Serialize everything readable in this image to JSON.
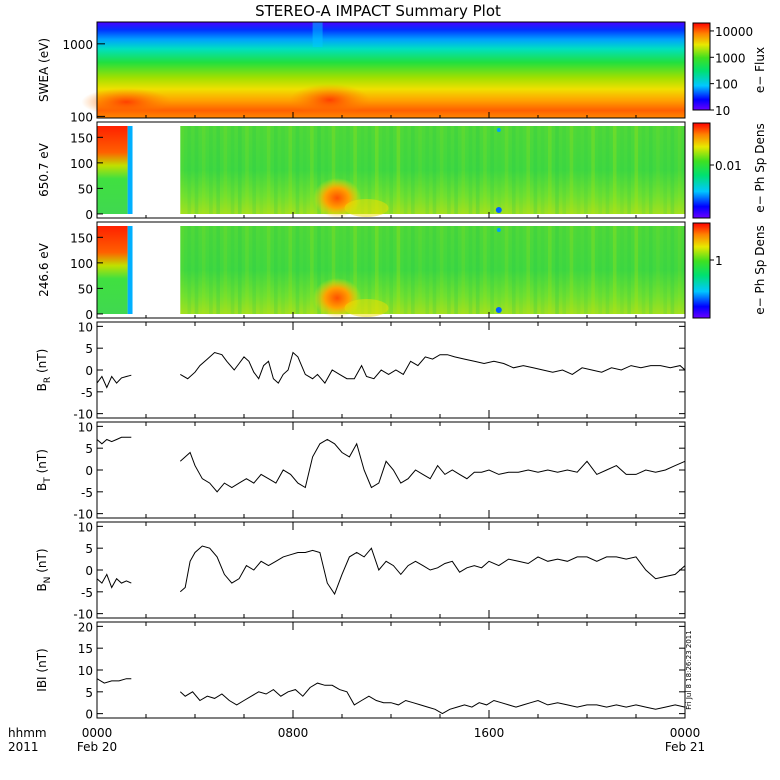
{
  "title": "STEREO-A IMPACT Summary Plot",
  "footer_left": {
    "line1": "hhmm",
    "line2": "2011"
  },
  "stamp": "Fri Jul 8 18:26:23 2011",
  "x_axis": {
    "ticks": [
      {
        "hour": 0,
        "label": "0000",
        "date": "Feb 20"
      },
      {
        "hour": 8,
        "label": "0800",
        "date": ""
      },
      {
        "hour": 16,
        "label": "1600",
        "date": ""
      },
      {
        "hour": 24,
        "label": "0000",
        "date": "Feb 21"
      }
    ],
    "range_hours": [
      0,
      24
    ]
  },
  "chart_data": [
    {
      "type": "heatmap",
      "name": "swea",
      "ylabel": "SWEA (eV)",
      "ylog": true,
      "ylim": [
        95,
        2000
      ],
      "yticks": [
        "1000",
        "100"
      ],
      "colorbar": {
        "label": "e− Flux",
        "log": true,
        "range": [
          10,
          20000
        ],
        "ticks": [
          "10000",
          "1000",
          "100",
          "10"
        ]
      }
    },
    {
      "type": "heatmap",
      "name": "pad650",
      "ylabel": "650.7 eV",
      "ylim": [
        -8,
        180
      ],
      "yticks": [
        "0",
        "50",
        "100",
        "150"
      ],
      "data_gap_hours": [
        1.45,
        3.4
      ],
      "colorbar": {
        "label": "e− Ph Sp Dens",
        "ticks": [
          "0.01"
        ]
      }
    },
    {
      "type": "heatmap",
      "name": "pad246",
      "ylabel": "246.6 eV",
      "ylim": [
        -8,
        180
      ],
      "yticks": [
        "0",
        "50",
        "100",
        "150"
      ],
      "data_gap_hours": [
        1.45,
        3.4
      ],
      "colorbar": {
        "label": "e− Ph Sp Dens",
        "ticks": [
          "1"
        ]
      }
    },
    {
      "type": "line",
      "name": "BR",
      "ylabel": "B",
      "ysub": "R",
      "yunit": "(nT)",
      "ylim": [
        -11,
        11
      ],
      "yticks": [
        "10",
        "5",
        "0",
        "-5",
        "-10"
      ],
      "x": [
        0,
        0.2,
        0.4,
        0.6,
        0.8,
        1.0,
        1.2,
        1.4,
        3.4,
        3.7,
        4.0,
        4.2,
        4.5,
        4.8,
        5.1,
        5.3,
        5.6,
        5.8,
        6.0,
        6.2,
        6.4,
        6.6,
        6.8,
        7.0,
        7.2,
        7.4,
        7.6,
        7.8,
        8.0,
        8.2,
        8.5,
        8.8,
        9.0,
        9.3,
        9.6,
        9.9,
        10.2,
        10.5,
        10.8,
        11.0,
        11.3,
        11.6,
        11.9,
        12.2,
        12.5,
        12.8,
        13.1,
        13.4,
        13.7,
        14.0,
        14.3,
        14.6,
        15.0,
        15.4,
        15.8,
        16.2,
        16.6,
        17.0,
        17.4,
        17.8,
        18.2,
        18.6,
        19.0,
        19.4,
        19.8,
        20.2,
        20.6,
        21.0,
        21.4,
        21.8,
        22.2,
        22.6,
        23.0,
        23.4,
        23.8,
        24.0
      ],
      "y": [
        -3,
        -1.5,
        -4,
        -1.5,
        -3,
        -1.8,
        -1.5,
        -1.2,
        -1,
        -2,
        -0.5,
        1,
        2.5,
        4,
        3.5,
        2,
        0,
        1.5,
        3,
        2,
        -0.5,
        -2,
        1,
        2,
        -2,
        -3,
        -1,
        0,
        4,
        3,
        -1,
        -2,
        -1,
        -3,
        0,
        -1,
        -2,
        -2,
        1,
        -1.5,
        -2,
        0,
        -1,
        0,
        -1,
        2,
        1,
        3,
        2.5,
        3.5,
        3.5,
        3,
        2.5,
        2,
        1.5,
        2,
        1.5,
        0.5,
        1,
        0.5,
        0,
        -0.5,
        0,
        -1,
        0.5,
        0,
        -0.5,
        0.5,
        0,
        1,
        0.5,
        1,
        1,
        0.5,
        1,
        0
      ]
    },
    {
      "type": "line",
      "name": "BT",
      "ylabel": "B",
      "ysub": "T",
      "yunit": "(nT)",
      "ylim": [
        -11,
        11
      ],
      "yticks": [
        "10",
        "5",
        "0",
        "-5",
        "-10"
      ],
      "x": [
        0,
        0.2,
        0.4,
        0.6,
        0.8,
        1.0,
        1.2,
        1.4,
        3.4,
        3.6,
        3.8,
        4.0,
        4.3,
        4.6,
        4.9,
        5.2,
        5.5,
        5.8,
        6.1,
        6.4,
        6.7,
        7.0,
        7.3,
        7.6,
        7.9,
        8.2,
        8.5,
        8.8,
        9.1,
        9.4,
        9.7,
        10.0,
        10.3,
        10.6,
        10.9,
        11.2,
        11.5,
        11.8,
        12.1,
        12.4,
        12.7,
        13.0,
        13.3,
        13.6,
        13.9,
        14.2,
        14.5,
        14.8,
        15.1,
        15.4,
        15.7,
        16.0,
        16.4,
        16.8,
        17.2,
        17.6,
        18.0,
        18.4,
        18.8,
        19.2,
        19.6,
        20.0,
        20.4,
        20.8,
        21.2,
        21.6,
        22.0,
        22.4,
        22.8,
        23.2,
        23.6,
        24.0
      ],
      "y": [
        7,
        6,
        7,
        6.5,
        7,
        7.5,
        7.5,
        7.5,
        2,
        3,
        4,
        1,
        -2,
        -3,
        -5,
        -3,
        -4,
        -3,
        -2,
        -3,
        -1,
        -2,
        -3,
        0,
        -1,
        -3,
        -4,
        3,
        6,
        7,
        6,
        4,
        3,
        6,
        0,
        -4,
        -3,
        2,
        0,
        -3,
        -2,
        0,
        -1,
        -2,
        1,
        -1,
        0,
        -1,
        -2,
        -0.5,
        -0.5,
        0,
        -1,
        -0.5,
        -0.5,
        0,
        -0.5,
        0,
        -0.5,
        0,
        -0.5,
        2,
        -1,
        0,
        1,
        -1,
        -1,
        0,
        -0.5,
        0,
        1,
        2
      ]
    },
    {
      "type": "line",
      "name": "BN",
      "ylabel": "B",
      "ysub": "N",
      "yunit": "(nT)",
      "ylim": [
        -11,
        11
      ],
      "yticks": [
        "10",
        "5",
        "0",
        "-5",
        "-10"
      ],
      "x": [
        0,
        0.2,
        0.4,
        0.6,
        0.8,
        1.0,
        1.2,
        1.4,
        3.4,
        3.6,
        3.8,
        4.0,
        4.3,
        4.6,
        4.9,
        5.2,
        5.5,
        5.8,
        6.1,
        6.4,
        6.7,
        7.0,
        7.3,
        7.6,
        7.9,
        8.2,
        8.5,
        8.8,
        9.1,
        9.4,
        9.7,
        10.0,
        10.3,
        10.6,
        10.9,
        11.2,
        11.5,
        11.8,
        12.1,
        12.4,
        12.7,
        13.0,
        13.3,
        13.6,
        13.9,
        14.2,
        14.5,
        14.8,
        15.1,
        15.4,
        15.7,
        16.0,
        16.4,
        16.8,
        17.2,
        17.6,
        18.0,
        18.4,
        18.8,
        19.2,
        19.6,
        20.0,
        20.4,
        20.8,
        21.2,
        21.6,
        22.0,
        22.4,
        22.8,
        23.2,
        23.6,
        24.0
      ],
      "y": [
        -2,
        -3,
        -1,
        -4,
        -2,
        -3,
        -2.5,
        -3,
        -5,
        -4,
        2,
        4,
        5.5,
        5,
        3,
        -1,
        -3,
        -2,
        1,
        0,
        2,
        1,
        2,
        3,
        3.5,
        4,
        4,
        4.5,
        4,
        -3,
        -5.5,
        -1,
        3,
        4,
        3,
        5,
        0,
        2,
        1,
        -1,
        1,
        2,
        1,
        0,
        0.5,
        1.5,
        2,
        -0.5,
        0.5,
        1,
        0.5,
        2,
        1,
        2.5,
        2,
        1.5,
        3,
        2,
        2.5,
        2,
        3,
        3,
        2,
        3,
        3,
        2.5,
        3,
        0,
        -2,
        -1.5,
        -1,
        1
      ]
    },
    {
      "type": "line",
      "name": "Bmag",
      "ylabel": "IBI (nT)",
      "ylim": [
        -1,
        21
      ],
      "yticks": [
        "20",
        "15",
        "10",
        "5",
        "0"
      ],
      "x": [
        0,
        0.3,
        0.6,
        0.9,
        1.2,
        1.4,
        3.4,
        3.6,
        3.9,
        4.2,
        4.5,
        4.8,
        5.1,
        5.4,
        5.7,
        6.0,
        6.3,
        6.6,
        6.9,
        7.2,
        7.5,
        7.8,
        8.1,
        8.4,
        8.7,
        9.0,
        9.3,
        9.6,
        9.9,
        10.2,
        10.5,
        10.8,
        11.1,
        11.4,
        11.7,
        12.0,
        12.3,
        12.6,
        12.9,
        13.2,
        13.5,
        13.8,
        14.1,
        14.4,
        14.7,
        15.0,
        15.3,
        15.6,
        15.9,
        16.2,
        16.5,
        16.8,
        17.1,
        17.4,
        17.7,
        18.0,
        18.4,
        18.8,
        19.2,
        19.6,
        20.0,
        20.4,
        20.8,
        21.2,
        21.6,
        22.0,
        22.4,
        22.8,
        23.2,
        23.6,
        24.0
      ],
      "y": [
        8,
        7,
        7.5,
        7.5,
        8,
        8,
        5,
        4,
        5,
        3,
        4,
        3.5,
        4.5,
        3,
        2,
        3,
        4,
        5,
        4.5,
        5.5,
        4,
        5,
        5.5,
        4,
        6,
        7,
        6.5,
        6.5,
        5.5,
        5,
        2,
        3,
        4,
        3,
        2.5,
        2.5,
        2,
        3,
        2.5,
        2,
        1.5,
        1,
        0,
        1,
        1.5,
        2,
        1.5,
        2.5,
        2,
        3,
        2.5,
        2,
        1.5,
        2,
        2.5,
        3,
        2,
        2.5,
        2,
        1.5,
        2,
        2,
        1.5,
        2,
        1.5,
        2,
        1.5,
        1,
        1.5,
        2,
        1.5
      ]
    }
  ]
}
